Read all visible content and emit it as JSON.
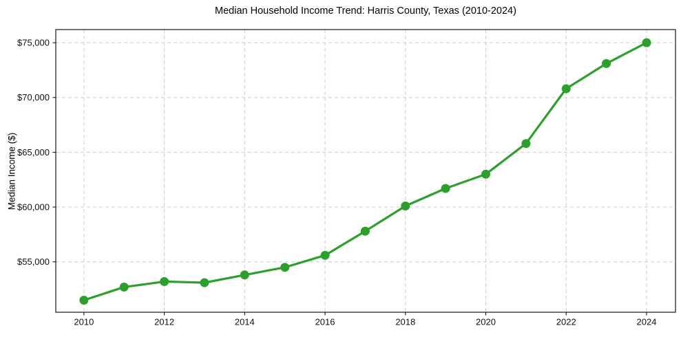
{
  "chart_data": {
    "type": "line",
    "title": "Median Household Income Trend: Harris County, Texas (2010-2024)",
    "ylabel": "Median Income ($)",
    "xlabel": "",
    "x": [
      2010,
      2011,
      2012,
      2013,
      2014,
      2015,
      2016,
      2017,
      2018,
      2019,
      2020,
      2021,
      2022,
      2023,
      2024
    ],
    "values": [
      51500,
      52700,
      53200,
      53100,
      53800,
      54500,
      55600,
      57800,
      60100,
      61700,
      63000,
      65800,
      70800,
      73100,
      75000
    ],
    "series_name": "Median household income",
    "xlim": [
      2009.3,
      2024.72
    ],
    "ylim": [
      50400,
      76200
    ],
    "xticks": [
      {
        "value": 2010,
        "label": "2010"
      },
      {
        "value": 2012,
        "label": "2012"
      },
      {
        "value": 2014,
        "label": "2014"
      },
      {
        "value": 2016,
        "label": "2016"
      },
      {
        "value": 2018,
        "label": "2018"
      },
      {
        "value": 2020,
        "label": "2020"
      },
      {
        "value": 2022,
        "label": "2022"
      },
      {
        "value": 2024,
        "label": "2024"
      }
    ],
    "yticks": [
      {
        "value": 55000,
        "label": "$55,000"
      },
      {
        "value": 60000,
        "label": "$60,000"
      },
      {
        "value": 65000,
        "label": "$65,000"
      },
      {
        "value": 70000,
        "label": "$70,000"
      },
      {
        "value": 75000,
        "label": "$75,000"
      }
    ],
    "grid": true,
    "legend": "none",
    "colors": {
      "line": "#2ca02c",
      "marker": "#2ca02c",
      "gridline": "#cccccc",
      "spine": "#000000",
      "background": "#ffffff",
      "text": "#111111"
    },
    "marker_style": "circle",
    "line_width": 3.2,
    "marker_radius": 6.5
  }
}
